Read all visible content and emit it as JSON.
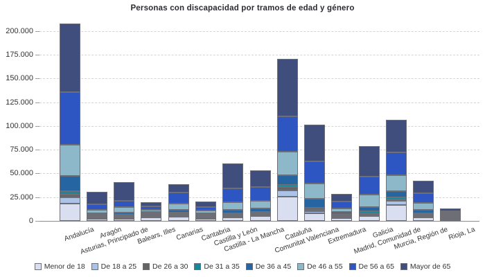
{
  "title": "Personas con discapacidad por tramos de edad y género",
  "palette": {
    "background": "#ffffff",
    "grid_color": "#d4d4d4",
    "axis_color": "#8a8a8a",
    "text_color": "#333333",
    "title_color": "#2b2b33",
    "segment_border": "#6e6f76"
  },
  "chart_data": {
    "type": "bar",
    "stacked": true,
    "title": "Personas con discapacidad por tramos de edad y género",
    "xlabel": "",
    "ylabel": "",
    "grid": "horizontal dashed",
    "legend_position": "bottom",
    "ylim": [
      0,
      212500
    ],
    "y_ticks": [
      0,
      25000,
      50000,
      75000,
      100000,
      125000,
      150000,
      175000,
      200000
    ],
    "y_tick_labels": [
      "0",
      "25.000",
      "50.000",
      "75.000",
      "100.000",
      "125.000",
      "150.000",
      "175.000",
      "200.000"
    ],
    "categories": [
      "Andalucía",
      "Aragón",
      "Asturias, Principado de",
      "Balears, Illes",
      "Canarias",
      "Cantabria",
      "Castilla y León",
      "Castilla - La Mancha",
      "Cataluña",
      "Comunitat Valenciana",
      "Extremadura",
      "Galicia",
      "Madrid, Comunidad de",
      "Murcia, Región de",
      "Rioja, La"
    ],
    "series": [
      {
        "name": "Menor de 18",
        "color": "#d9def0",
        "values": [
          18500,
          1900,
          2200,
          3500,
          4400,
          2400,
          3800,
          5200,
          25200,
          7700,
          2800,
          5200,
          16500,
          3900,
          700
        ]
      },
      {
        "name": "De 18 a 25",
        "color": "#aac3e6",
        "values": [
          6500,
          1000,
          1200,
          1500,
          1400,
          1000,
          1400,
          1500,
          6900,
          2700,
          1700,
          1500,
          4400,
          1500,
          400
        ]
      },
      {
        "name": "De 26 a 30",
        "color": "#646464",
        "values": [
          2900,
          700,
          700,
          600,
          500,
          500,
          1000,
          950,
          3400,
          1000,
          800,
          950,
          1700,
          1000,
          200
        ]
      },
      {
        "name": "De 31 a 35",
        "color": "#17879c",
        "values": [
          3700,
          750,
          800,
          900,
          1500,
          750,
          1500,
          1450,
          2400,
          2200,
          900,
          1750,
          2400,
          1000,
          300
        ]
      },
      {
        "name": "De 36 a 45",
        "color": "#2565a2",
        "values": [
          16000,
          1900,
          2400,
          1400,
          2600,
          1400,
          3600,
          3400,
          10400,
          9000,
          1900,
          4800,
          6600,
          3700,
          700
        ]
      },
      {
        "name": "De 46 a 55",
        "color": "#8cb8ca",
        "values": [
          32800,
          3400,
          5600,
          2500,
          6600,
          2400,
          7800,
          7800,
          24300,
          16300,
          4200,
          12900,
          16500,
          7300,
          1100
        ]
      },
      {
        "name": "De 56 a 65",
        "color": "#2d56c2",
        "values": [
          55400,
          6300,
          6500,
          3700,
          11800,
          4200,
          15000,
          14600,
          37700,
          23600,
          6800,
          19400,
          24300,
          9700,
          1500
        ]
      },
      {
        "name": "Mayor de 65",
        "color": "#3f4e7d",
        "values": [
          71700,
          12800,
          19600,
          4500,
          9200,
          5500,
          25600,
          18200,
          60200,
          38400,
          8500,
          32000,
          34000,
          13300,
          3100
        ]
      }
    ]
  }
}
